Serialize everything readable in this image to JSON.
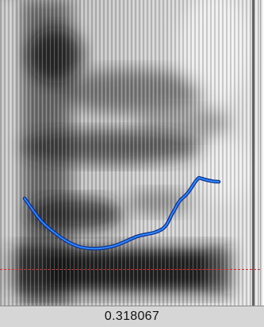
{
  "time_readout": {
    "value": "0.318067"
  },
  "colors": {
    "pitch_contour": "#1f6fe8",
    "cursor_line": "#d62a2a",
    "spectrogram_dark": "#1a1a1a",
    "spectrogram_light": "#f4f4f4",
    "time_bar_bg": "#d6d6d6"
  }
}
